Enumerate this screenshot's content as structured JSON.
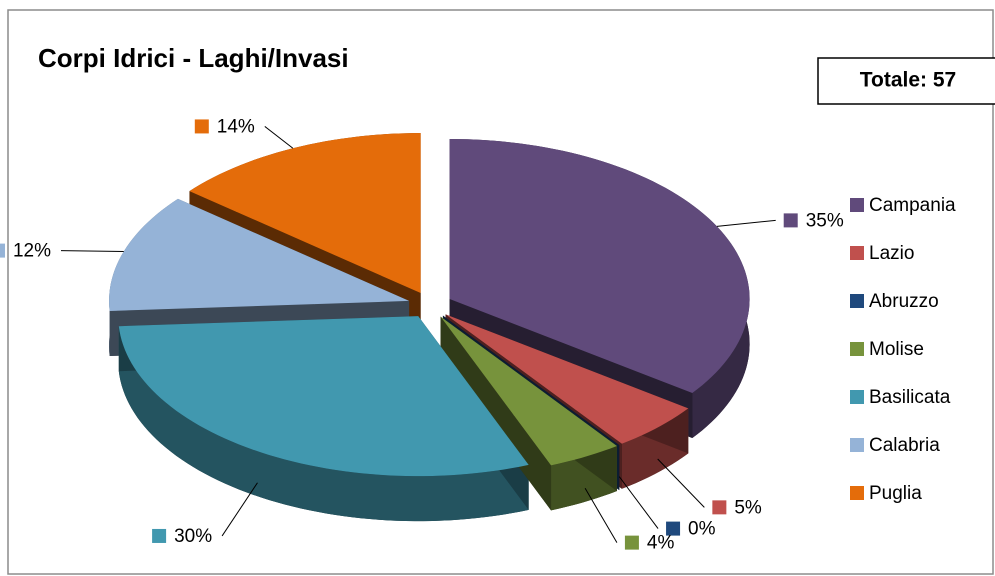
{
  "chart_data": {
    "type": "pie",
    "title": "Corpi Idrici - Laghi/Invasi",
    "annotation": "Totale: 57",
    "categories": [
      "Campania",
      "Lazio",
      "Abruzzo",
      "Molise",
      "Basilicata",
      "Calabria",
      "Puglia"
    ],
    "values": [
      35,
      5,
      0,
      4,
      30,
      12,
      14
    ],
    "value_labels": [
      "35%",
      "5%",
      "0%",
      "4%",
      "30%",
      "12%",
      "14%"
    ],
    "colors": [
      "#604a7b",
      "#c0504d",
      "#1f497d",
      "#77933c",
      "#4198af",
      "#95b3d7",
      "#e46c0a"
    ],
    "legend": "right"
  }
}
